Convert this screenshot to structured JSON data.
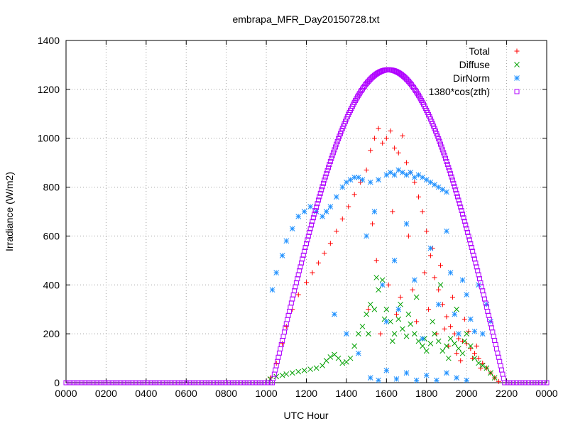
{
  "chart_data": {
    "type": "scatter",
    "title": "embrapa_MFR_Day20150728.txt",
    "xlabel": "UTC Hour",
    "ylabel": "Irradiance (W/m2)",
    "xlim": [
      0,
      24
    ],
    "ylim": [
      0,
      1400
    ],
    "x_ticks": [
      0,
      2,
      4,
      6,
      8,
      10,
      12,
      14,
      16,
      18,
      20,
      22,
      24
    ],
    "x_tick_labels": [
      "0000",
      "0200",
      "0400",
      "0600",
      "0800",
      "1000",
      "1200",
      "1400",
      "1600",
      "1800",
      "2000",
      "2200",
      "0000"
    ],
    "y_ticks": [
      0,
      200,
      400,
      600,
      800,
      1000,
      1200,
      1400
    ],
    "y_tick_labels": [
      "0",
      "200",
      "400",
      "600",
      "800",
      "1000",
      "1200",
      "1400"
    ],
    "grid": true,
    "legend_position": "top-right",
    "series": [
      {
        "name": "Total",
        "color": "#ff0000",
        "marker": "plus",
        "points": [
          [
            10.2,
            20
          ],
          [
            10.5,
            80
          ],
          [
            10.8,
            160
          ],
          [
            11.0,
            230
          ],
          [
            11.3,
            300
          ],
          [
            11.6,
            360
          ],
          [
            12.0,
            410
          ],
          [
            12.3,
            450
          ],
          [
            12.6,
            490
          ],
          [
            12.9,
            530
          ],
          [
            13.2,
            570
          ],
          [
            13.5,
            620
          ],
          [
            13.8,
            670
          ],
          [
            14.1,
            720
          ],
          [
            14.4,
            770
          ],
          [
            14.7,
            820
          ],
          [
            15.0,
            870
          ],
          [
            15.2,
            950
          ],
          [
            15.4,
            1000
          ],
          [
            15.6,
            1040
          ],
          [
            15.8,
            980
          ],
          [
            16.0,
            1000
          ],
          [
            16.2,
            1030
          ],
          [
            16.4,
            960
          ],
          [
            16.6,
            940
          ],
          [
            16.8,
            1010
          ],
          [
            17.0,
            900
          ],
          [
            17.2,
            860
          ],
          [
            17.4,
            820
          ],
          [
            17.6,
            760
          ],
          [
            17.8,
            700
          ],
          [
            18.0,
            620
          ],
          [
            18.2,
            520
          ],
          [
            18.4,
            430
          ],
          [
            18.6,
            380
          ],
          [
            18.8,
            320
          ],
          [
            19.0,
            270
          ],
          [
            19.2,
            230
          ],
          [
            19.4,
            200
          ],
          [
            19.6,
            180
          ],
          [
            19.8,
            170
          ],
          [
            20.0,
            160
          ],
          [
            20.2,
            140
          ],
          [
            20.4,
            120
          ],
          [
            20.6,
            100
          ],
          [
            20.8,
            80
          ],
          [
            21.0,
            60
          ],
          [
            21.2,
            40
          ],
          [
            21.4,
            20
          ],
          [
            21.6,
            5
          ],
          [
            15.1,
            300
          ],
          [
            15.3,
            650
          ],
          [
            15.5,
            500
          ],
          [
            15.7,
            200
          ],
          [
            16.1,
            400
          ],
          [
            16.3,
            700
          ],
          [
            16.5,
            280
          ],
          [
            16.7,
            350
          ],
          [
            17.1,
            600
          ],
          [
            17.3,
            380
          ],
          [
            17.5,
            250
          ],
          [
            17.9,
            450
          ],
          [
            18.1,
            300
          ],
          [
            18.3,
            550
          ],
          [
            18.5,
            200
          ],
          [
            18.7,
            480
          ],
          [
            18.9,
            220
          ],
          [
            19.1,
            150
          ],
          [
            19.3,
            350
          ],
          [
            19.5,
            120
          ],
          [
            19.7,
            90
          ],
          [
            19.9,
            260
          ],
          [
            20.1,
            210
          ],
          [
            20.3,
            100
          ],
          [
            20.5,
            150
          ],
          [
            20.7,
            60
          ]
        ]
      },
      {
        "name": "Diffuse",
        "color": "#00a000",
        "marker": "cross",
        "points": [
          [
            10.2,
            15
          ],
          [
            10.5,
            25
          ],
          [
            10.8,
            30
          ],
          [
            11.0,
            35
          ],
          [
            11.3,
            40
          ],
          [
            11.6,
            45
          ],
          [
            11.9,
            50
          ],
          [
            12.2,
            55
          ],
          [
            12.5,
            60
          ],
          [
            12.8,
            70
          ],
          [
            13.0,
            90
          ],
          [
            13.2,
            105
          ],
          [
            13.4,
            115
          ],
          [
            13.6,
            100
          ],
          [
            13.8,
            80
          ],
          [
            14.0,
            85
          ],
          [
            14.2,
            100
          ],
          [
            14.4,
            150
          ],
          [
            14.6,
            200
          ],
          [
            14.8,
            230
          ],
          [
            15.0,
            280
          ],
          [
            15.2,
            320
          ],
          [
            15.4,
            300
          ],
          [
            15.6,
            380
          ],
          [
            15.8,
            420
          ],
          [
            16.0,
            300
          ],
          [
            16.2,
            250
          ],
          [
            16.4,
            200
          ],
          [
            16.6,
            260
          ],
          [
            16.8,
            220
          ],
          [
            17.0,
            190
          ],
          [
            17.2,
            240
          ],
          [
            17.4,
            200
          ],
          [
            17.6,
            170
          ],
          [
            17.8,
            150
          ],
          [
            18.0,
            130
          ],
          [
            18.2,
            160
          ],
          [
            18.4,
            200
          ],
          [
            18.6,
            170
          ],
          [
            18.8,
            130
          ],
          [
            19.0,
            150
          ],
          [
            19.2,
            180
          ],
          [
            19.4,
            160
          ],
          [
            19.6,
            140
          ],
          [
            19.8,
            120
          ],
          [
            20.0,
            200
          ],
          [
            20.2,
            150
          ],
          [
            20.4,
            100
          ],
          [
            20.6,
            80
          ],
          [
            20.8,
            70
          ],
          [
            21.0,
            60
          ],
          [
            21.2,
            40
          ],
          [
            21.4,
            20
          ],
          [
            15.1,
            200
          ],
          [
            15.5,
            430
          ],
          [
            15.9,
            260
          ],
          [
            16.3,
            170
          ],
          [
            16.7,
            320
          ],
          [
            17.1,
            280
          ],
          [
            17.5,
            350
          ],
          [
            17.9,
            180
          ],
          [
            18.3,
            250
          ],
          [
            18.7,
            400
          ],
          [
            19.1,
            100
          ],
          [
            19.5,
            300
          ],
          [
            19.9,
            170
          ]
        ]
      },
      {
        "name": "DirNorm",
        "color": "#1e90ff",
        "marker": "star",
        "points": [
          [
            10.3,
            380
          ],
          [
            10.5,
            450
          ],
          [
            10.8,
            520
          ],
          [
            11.0,
            580
          ],
          [
            11.3,
            630
          ],
          [
            11.6,
            680
          ],
          [
            11.9,
            700
          ],
          [
            12.2,
            720
          ],
          [
            12.5,
            700
          ],
          [
            12.8,
            680
          ],
          [
            13.0,
            700
          ],
          [
            13.2,
            720
          ],
          [
            13.5,
            760
          ],
          [
            13.8,
            800
          ],
          [
            14.0,
            820
          ],
          [
            14.2,
            830
          ],
          [
            14.4,
            840
          ],
          [
            14.6,
            840
          ],
          [
            14.8,
            830
          ],
          [
            15.2,
            820
          ],
          [
            15.6,
            830
          ],
          [
            16.0,
            850
          ],
          [
            16.2,
            860
          ],
          [
            16.4,
            850
          ],
          [
            16.6,
            870
          ],
          [
            16.8,
            860
          ],
          [
            17.0,
            850
          ],
          [
            17.2,
            860
          ],
          [
            17.4,
            840
          ],
          [
            17.6,
            850
          ],
          [
            17.8,
            840
          ],
          [
            18.0,
            830
          ],
          [
            18.2,
            820
          ],
          [
            18.4,
            810
          ],
          [
            18.6,
            800
          ],
          [
            18.8,
            790
          ],
          [
            19.0,
            780
          ],
          [
            15.0,
            600
          ],
          [
            15.4,
            700
          ],
          [
            15.8,
            400
          ],
          [
            16.0,
            250
          ],
          [
            16.4,
            500
          ],
          [
            16.6,
            300
          ],
          [
            17.0,
            650
          ],
          [
            17.4,
            420
          ],
          [
            17.8,
            180
          ],
          [
            18.2,
            550
          ],
          [
            18.6,
            320
          ],
          [
            19.0,
            620
          ],
          [
            19.2,
            450
          ],
          [
            19.4,
            280
          ],
          [
            19.6,
            200
          ],
          [
            19.8,
            420
          ],
          [
            20.0,
            360
          ],
          [
            20.2,
            260
          ],
          [
            20.4,
            210
          ],
          [
            20.6,
            400
          ],
          [
            20.8,
            200
          ],
          [
            21.0,
            320
          ],
          [
            21.2,
            250
          ],
          [
            13.4,
            280
          ],
          [
            14.0,
            200
          ],
          [
            14.6,
            120
          ],
          [
            15.2,
            20
          ],
          [
            15.6,
            10
          ],
          [
            16.0,
            50
          ],
          [
            16.5,
            15
          ],
          [
            17.0,
            40
          ],
          [
            17.5,
            10
          ],
          [
            18.0,
            30
          ],
          [
            18.5,
            10
          ],
          [
            19.0,
            40
          ],
          [
            19.5,
            20
          ],
          [
            20.0,
            10
          ]
        ]
      },
      {
        "name": "1380*cos(zth)",
        "color": "#b000ff",
        "marker": "square",
        "curve": {
          "type": "solar",
          "amplitude": 1380,
          "peak_value": 1280,
          "peak_x": 16.1,
          "x_start": 10.3,
          "x_end": 21.9,
          "step": 0.05
        }
      }
    ]
  }
}
